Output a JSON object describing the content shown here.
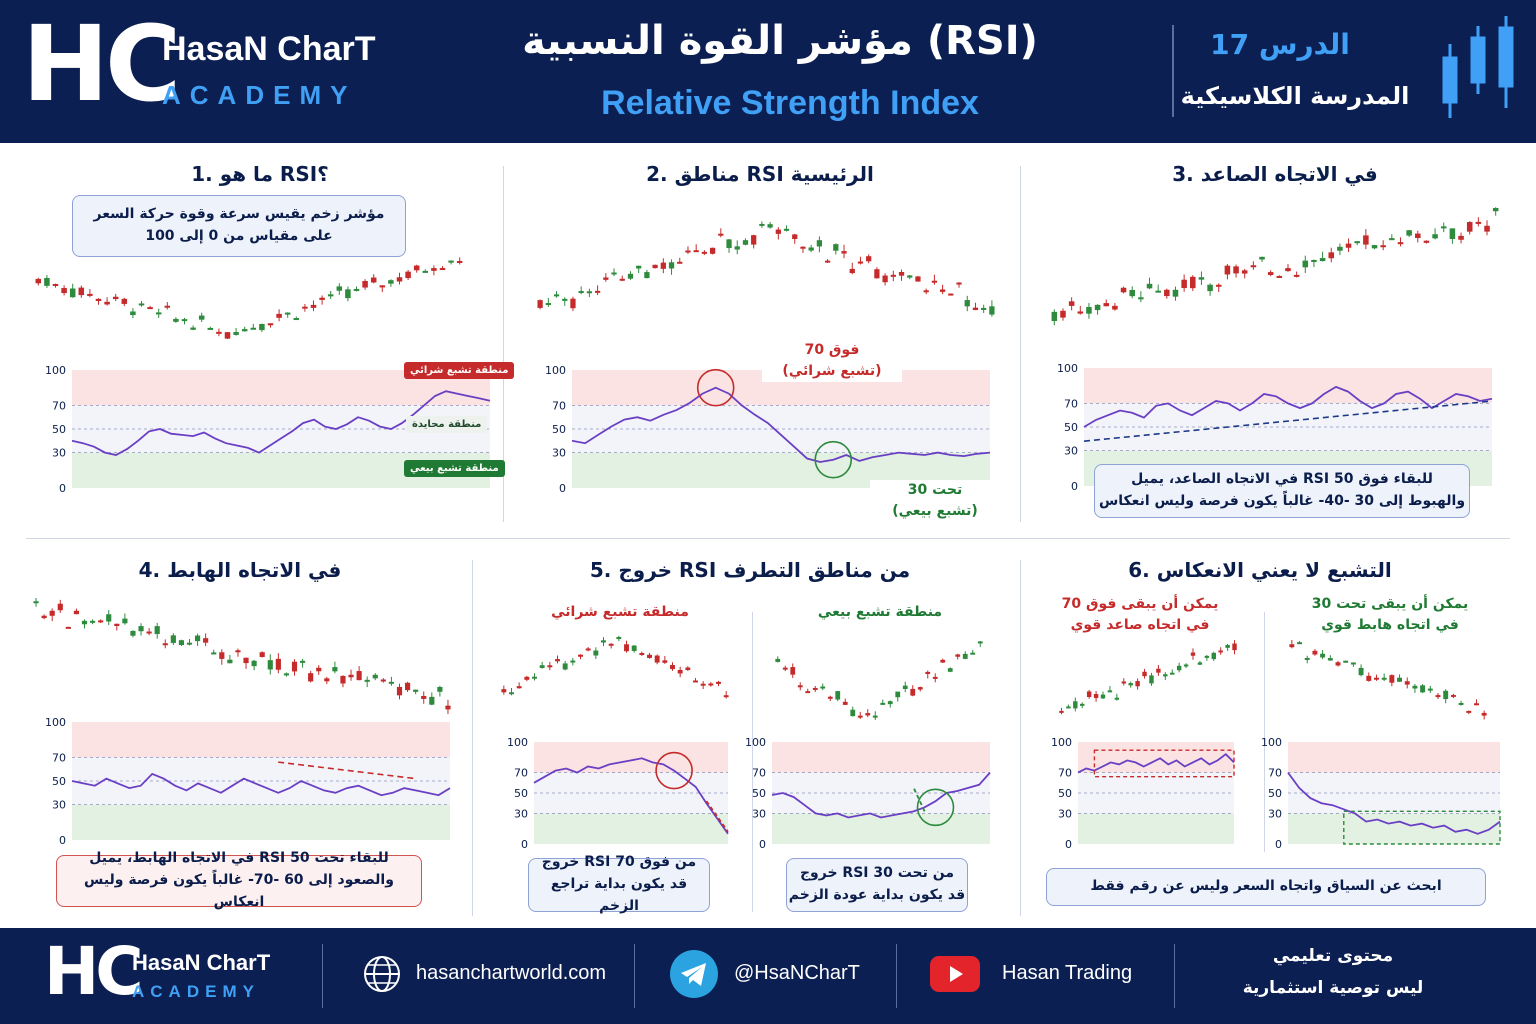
{
  "header": {
    "logo": "HC",
    "brand": "HasaN CharT",
    "brand_sub": "ACADEMY",
    "title": "مؤشر القوة النسبية (RSI)",
    "subtitle": "Relative Strength Index",
    "lesson": "الدرس 17",
    "school": "المدرسة الكلاسيكية"
  },
  "panels": {
    "p1": {
      "title": "1. ما هو RSI؟",
      "desc_line1": "مؤشر زخم يقيس سرعة وقوة حركة السعر",
      "desc_line2": "على مقياس من 0 إلى 100",
      "tag_overbought": "منطقة تشبع شرائي",
      "tag_neutral": "منطقة محايدة",
      "tag_oversold": "منطقة تشبع بيعي"
    },
    "p2": {
      "title": "2. مناطق RSI الرئيسية",
      "above_line1": "فوق 70",
      "above_line2": "(تشبع شرائي)",
      "below_line1": "تحت 30",
      "below_line2": "(تشبع بيعي)"
    },
    "p3": {
      "title": "3. في الاتجاه الصاعد",
      "note_line1": "في الاتجاه الصاعد، يميل RSI للبقاء فوق 50",
      "note_line2": "والهبوط إلى 30 -40- غالباً يكون فرصة وليس انعكاس"
    },
    "p4": {
      "title": "4. في الاتجاه الهابط",
      "note_line1": "في الاتجاه الهابط، يميل RSI للبقاء تحت 50",
      "note_line2": "والصعود إلى 60 -70- غالباً يكون فرصة وليس انعكاس"
    },
    "p5": {
      "title": "5. خروج RSI من مناطق التطرف",
      "left_label": "منطقة تشبع شرائي",
      "right_label": "منطقة تشبع بيعي",
      "left_note_line1": "خروج RSI من فوق 70",
      "left_note_line2": "قد يكون بداية تراجع الزخم",
      "right_note_line1": "خروج RSI من تحت 30",
      "right_note_line2": "قد يكون بداية عودة الزخم"
    },
    "p6": {
      "title": "6. التشبع لا يعني الانعكاس",
      "left_label_line1": "يمكن أن يبقى فوق 70",
      "left_label_line2": "في اتجاه صاعد قوي",
      "right_label_line1": "يمكن أن يبقى تحت 30",
      "right_label_line2": "في اتجاه هابط قوي",
      "note": "ابحث عن السياق واتجاه السعر وليس عن رقم فقط"
    }
  },
  "footer": {
    "logo": "HC",
    "brand": "HasaN CharT",
    "brand_sub": "ACADEMY",
    "website": "hasanchartworld.com",
    "telegram": "@HsaNCharT",
    "youtube": "Hasan Trading",
    "note_line1": "محتوى تعليمي",
    "note_line2": "ليس توصية استثمارية"
  },
  "colors": {
    "navy": "#0c1f52",
    "accent_blue": "#3fa0f5",
    "bull": "#2e8b3e",
    "bear": "#c62b2b",
    "rsi_line": "#6a3fc4",
    "overbought_zone": "#fbe3e3",
    "oversold_zone": "#e3f1e2"
  },
  "chart_data": [
    {
      "type": "line",
      "name": "p1-rsi",
      "y_ticks": [
        0,
        30,
        50,
        70,
        100
      ],
      "ylim": [
        0,
        100
      ],
      "zones": {
        "overbought": 70,
        "oversold": 30
      },
      "price_trend": "down-then-up",
      "rsi": [
        40,
        38,
        35,
        30,
        28,
        33,
        40,
        48,
        50,
        46,
        45,
        44,
        47,
        42,
        38,
        36,
        34,
        30,
        36,
        42,
        48,
        55,
        58,
        52,
        50,
        54,
        60,
        57,
        52,
        50,
        55,
        62,
        70,
        78,
        82,
        80,
        78,
        76,
        74
      ]
    },
    {
      "type": "line",
      "name": "p2-rsi",
      "y_ticks": [
        0,
        30,
        50,
        70,
        100
      ],
      "ylim": [
        0,
        100
      ],
      "zones": {
        "overbought": 70,
        "oversold": 30
      },
      "price_trend": "up-then-down",
      "rsi": [
        40,
        38,
        45,
        52,
        58,
        60,
        57,
        62,
        66,
        72,
        80,
        85,
        80,
        70,
        62,
        55,
        45,
        35,
        25,
        22,
        24,
        28,
        23,
        26,
        28,
        30,
        29,
        28,
        30,
        28,
        27,
        29,
        30
      ]
    },
    {
      "type": "line",
      "name": "p3-rsi",
      "y_ticks": [
        0,
        30,
        50,
        70,
        100
      ],
      "ylim": [
        0,
        100
      ],
      "zones": {
        "overbought": 70,
        "oversold": 30
      },
      "price_trend": "up",
      "rsi": [
        50,
        56,
        60,
        64,
        62,
        58,
        68,
        70,
        64,
        60,
        66,
        72,
        70,
        64,
        70,
        78,
        76,
        70,
        66,
        70,
        78,
        84,
        80,
        72,
        66,
        70,
        78,
        80,
        74,
        66,
        72,
        78,
        76,
        72,
        74
      ]
    },
    {
      "type": "line",
      "name": "p4-rsi",
      "y_ticks": [
        0,
        30,
        50,
        70,
        100
      ],
      "ylim": [
        0,
        100
      ],
      "zones": {
        "overbought": 70,
        "oversold": 30
      },
      "price_trend": "down",
      "rsi": [
        50,
        48,
        46,
        52,
        48,
        44,
        46,
        56,
        52,
        46,
        42,
        48,
        44,
        40,
        46,
        52,
        48,
        44,
        40,
        44,
        50,
        46,
        42,
        40,
        44,
        46,
        42,
        38,
        40,
        44,
        42,
        40,
        38,
        44
      ]
    },
    {
      "type": "line",
      "name": "p5-left-rsi",
      "y_ticks": [
        0,
        30,
        50,
        70,
        100
      ],
      "ylim": [
        0,
        100
      ],
      "price_trend": "up-then-down",
      "rsi": [
        60,
        66,
        72,
        74,
        70,
        76,
        74,
        78,
        80,
        82,
        84,
        80,
        78,
        72,
        64,
        56,
        40,
        25,
        10
      ]
    },
    {
      "type": "line",
      "name": "p5-right-rsi",
      "y_ticks": [
        0,
        30,
        50,
        70,
        100
      ],
      "ylim": [
        0,
        100
      ],
      "price_trend": "down-then-up",
      "rsi": [
        48,
        50,
        46,
        38,
        30,
        28,
        30,
        26,
        28,
        30,
        26,
        28,
        30,
        32,
        36,
        42,
        50,
        52,
        55,
        58,
        70
      ]
    },
    {
      "type": "line",
      "name": "p6-left-rsi",
      "y_ticks": [
        0,
        30,
        50,
        70,
        100
      ],
      "ylim": [
        0,
        100
      ],
      "price_trend": "up",
      "rsi": [
        70,
        74,
        72,
        76,
        80,
        78,
        82,
        80,
        76,
        80,
        84,
        78,
        82,
        76,
        80,
        84,
        78,
        82,
        88,
        80
      ]
    },
    {
      "type": "line",
      "name": "p6-right-rsi",
      "y_ticks": [
        0,
        30,
        50,
        70,
        100
      ],
      "ylim": [
        0,
        100
      ],
      "price_trend": "down",
      "rsi": [
        70,
        55,
        45,
        40,
        38,
        34,
        30,
        22,
        24,
        20,
        22,
        18,
        20,
        16,
        18,
        12,
        14,
        10,
        14,
        22
      ]
    }
  ]
}
